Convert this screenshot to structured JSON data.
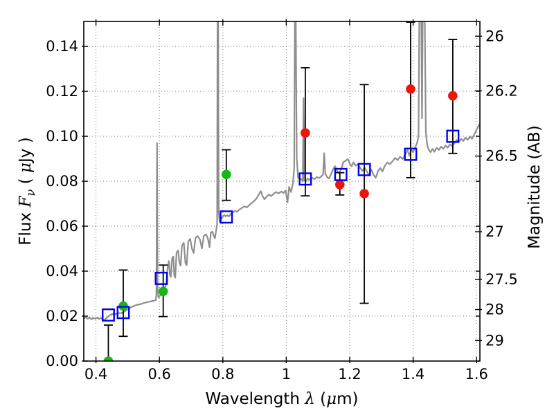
{
  "figure": {
    "background": "#ffffff",
    "frame_color": "#000000"
  },
  "colors": {
    "spectrum": "#8e8e8e",
    "observed_optical": "#17b517",
    "observed_infrared": "#f01408",
    "model_photometry": "#0000ee",
    "error_bars": "#000000",
    "grid": "#777777"
  },
  "labels": {
    "xlabel_text": "Wavelength  λ (μm)",
    "ylabel_left_text": "Flux  Fν  ( μJy )",
    "ylabel_right_text": "Magnitude (AB)",
    "xlabel_parts": [
      {
        "t": "Wavelength  "
      },
      {
        "t": "λ",
        "i": 1,
        "serif": 1
      },
      {
        "t": " ("
      },
      {
        "t": "μ",
        "i": 1,
        "serif": 1
      },
      {
        "t": "m)"
      }
    ],
    "ylabel_left_parts": [
      {
        "t": "Flux  "
      },
      {
        "t": "F",
        "i": 1,
        "serif": 1
      },
      {
        "t": "ν",
        "i": 1,
        "serif": 1,
        "sub": 1
      },
      {
        "t": "  ( "
      },
      {
        "t": "μ",
        "i": 1,
        "serif": 1
      },
      {
        "t": "Jy )"
      }
    ],
    "ylabel_right_parts": [
      {
        "t": "Magnitude (AB)"
      }
    ]
  },
  "chart_data": {
    "type": "line",
    "title": "",
    "xlabel": "Wavelength λ (μm)",
    "ylabel": "Flux Fν ( μJy )",
    "ylabel_right": "Magnitude (AB)",
    "xlim": [
      0.3616,
      1.6105
    ],
    "ylim_flux": [
      0.0,
      0.1511
    ],
    "mag_zeropoint_ab_ujy": 23.9,
    "grid": "dotted major gridlines on wavelength and flux ticks",
    "legend": "none",
    "x_ticks": [
      {
        "v": 0.4,
        "label": "0.4"
      },
      {
        "v": 0.6,
        "label": "0.6"
      },
      {
        "v": 0.8,
        "label": "0.8"
      },
      {
        "v": 1.0,
        "label": "1"
      },
      {
        "v": 1.2,
        "label": "1.2"
      },
      {
        "v": 1.4,
        "label": "1.4"
      },
      {
        "v": 1.6,
        "label": "1.6"
      }
    ],
    "flux_ticks": [
      {
        "v": 0.0,
        "label": "0.00"
      },
      {
        "v": 0.02,
        "label": "0.02"
      },
      {
        "v": 0.04,
        "label": "0.04"
      },
      {
        "v": 0.06,
        "label": "0.06"
      },
      {
        "v": 0.08,
        "label": "0.08"
      },
      {
        "v": 0.1,
        "label": "0.10"
      },
      {
        "v": 0.12,
        "label": "0.12"
      },
      {
        "v": 0.14,
        "label": "0.14"
      }
    ],
    "mag_ticks": [
      {
        "v": 26.0,
        "label": "26"
      },
      {
        "v": 26.2,
        "label": "26.2"
      },
      {
        "v": 26.5,
        "label": "26.5"
      },
      {
        "v": 27.0,
        "label": "27"
      },
      {
        "v": 27.5,
        "label": "27.5"
      },
      {
        "v": 28.0,
        "label": "28"
      },
      {
        "v": 29.0,
        "label": "29"
      }
    ],
    "series": [
      {
        "name": "model-spectrum",
        "type": "line",
        "color": "#8e8e8e",
        "linewidth": 2.2,
        "points": [
          [
            0.362,
            0.019
          ],
          [
            0.368,
            0.0195
          ],
          [
            0.374,
            0.0188
          ],
          [
            0.38,
            0.0194
          ],
          [
            0.386,
            0.0186
          ],
          [
            0.392,
            0.0192
          ],
          [
            0.398,
            0.0188
          ],
          [
            0.404,
            0.0193
          ],
          [
            0.41,
            0.0187
          ],
          [
            0.416,
            0.0192
          ],
          [
            0.421,
            0.0185
          ],
          [
            0.427,
            0.0183
          ],
          [
            0.432,
            0.019
          ],
          [
            0.437,
            0.0196
          ],
          [
            0.442,
            0.0202
          ],
          [
            0.447,
            0.0207
          ],
          [
            0.452,
            0.021
          ],
          [
            0.457,
            0.0204
          ],
          [
            0.462,
            0.0211
          ],
          [
            0.468,
            0.0209
          ],
          [
            0.474,
            0.0214
          ],
          [
            0.48,
            0.0213
          ],
          [
            0.486,
            0.0218
          ],
          [
            0.492,
            0.0222
          ],
          [
            0.498,
            0.0228
          ],
          [
            0.505,
            0.0235
          ],
          [
            0.513,
            0.0241
          ],
          [
            0.521,
            0.0246
          ],
          [
            0.529,
            0.025
          ],
          [
            0.537,
            0.0252
          ],
          [
            0.545,
            0.0255
          ],
          [
            0.553,
            0.0259
          ],
          [
            0.561,
            0.0262
          ],
          [
            0.569,
            0.0264
          ],
          [
            0.577,
            0.0267
          ],
          [
            0.584,
            0.0269
          ],
          [
            0.589,
            0.0272
          ],
          [
            0.5905,
            0.03
          ],
          [
            0.5925,
            0.097
          ],
          [
            0.5945,
            0.031
          ],
          [
            0.597,
            0.0283
          ],
          [
            0.602,
            0.029
          ],
          [
            0.607,
            0.0298
          ],
          [
            0.612,
            0.0306
          ],
          [
            0.617,
            0.0318
          ],
          [
            0.622,
            0.0355
          ],
          [
            0.6265,
            0.042
          ],
          [
            0.63,
            0.0445
          ],
          [
            0.633,
            0.0385
          ],
          [
            0.636,
            0.0374
          ],
          [
            0.64,
            0.0456
          ],
          [
            0.644,
            0.0465
          ],
          [
            0.647,
            0.0379
          ],
          [
            0.65,
            0.0371
          ],
          [
            0.654,
            0.0482
          ],
          [
            0.659,
            0.0492
          ],
          [
            0.663,
            0.044
          ],
          [
            0.667,
            0.0424
          ],
          [
            0.671,
            0.0512
          ],
          [
            0.677,
            0.0526
          ],
          [
            0.682,
            0.0436
          ],
          [
            0.686,
            0.0426
          ],
          [
            0.691,
            0.0532
          ],
          [
            0.697,
            0.0544
          ],
          [
            0.703,
            0.0498
          ],
          [
            0.708,
            0.0481
          ],
          [
            0.714,
            0.0549
          ],
          [
            0.721,
            0.0556
          ],
          [
            0.728,
            0.054
          ],
          [
            0.734,
            0.0501
          ],
          [
            0.74,
            0.0557
          ],
          [
            0.747,
            0.0564
          ],
          [
            0.753,
            0.0544
          ],
          [
            0.758,
            0.0506
          ],
          [
            0.762,
            0.0571
          ],
          [
            0.767,
            0.0576
          ],
          [
            0.771,
            0.0559
          ],
          [
            0.775,
            0.0546
          ],
          [
            0.779,
            0.0582
          ],
          [
            0.782,
            0.061
          ],
          [
            0.7832,
            0.156
          ],
          [
            0.7853,
            0.156
          ],
          [
            0.787,
            0.066
          ],
          [
            0.79,
            0.062
          ],
          [
            0.794,
            0.0631
          ],
          [
            0.799,
            0.0641
          ],
          [
            0.804,
            0.065
          ],
          [
            0.809,
            0.0644
          ],
          [
            0.814,
            0.0649
          ],
          [
            0.819,
            0.0643
          ],
          [
            0.825,
            0.0654
          ],
          [
            0.831,
            0.0661
          ],
          [
            0.838,
            0.0668
          ],
          [
            0.845,
            0.0664
          ],
          [
            0.852,
            0.0674
          ],
          [
            0.86,
            0.0681
          ],
          [
            0.868,
            0.0688
          ],
          [
            0.876,
            0.0684
          ],
          [
            0.884,
            0.0694
          ],
          [
            0.892,
            0.0704
          ],
          [
            0.9,
            0.0714
          ],
          [
            0.908,
            0.0727
          ],
          [
            0.915,
            0.0745
          ],
          [
            0.92,
            0.0756
          ],
          [
            0.925,
            0.0734
          ],
          [
            0.931,
            0.072
          ],
          [
            0.938,
            0.0731
          ],
          [
            0.945,
            0.0741
          ],
          [
            0.952,
            0.0734
          ],
          [
            0.96,
            0.0744
          ],
          [
            0.968,
            0.0752
          ],
          [
            0.976,
            0.0746
          ],
          [
            0.984,
            0.0754
          ],
          [
            0.991,
            0.0748
          ],
          [
            0.998,
            0.0759
          ],
          [
            1.004,
            0.0706
          ],
          [
            1.009,
            0.0775
          ],
          [
            1.015,
            0.0752
          ],
          [
            1.021,
            0.079
          ],
          [
            1.025,
            0.086
          ],
          [
            1.0272,
            0.156
          ],
          [
            1.0298,
            0.156
          ],
          [
            1.033,
            0.0905
          ],
          [
            1.037,
            0.0818
          ],
          [
            1.042,
            0.0806
          ],
          [
            1.047,
            0.0811
          ],
          [
            1.052,
            0.0799
          ],
          [
            1.0545,
            0.117
          ],
          [
            1.057,
            0.0804
          ],
          [
            1.062,
            0.0799
          ],
          [
            1.068,
            0.0812
          ],
          [
            1.075,
            0.0805
          ],
          [
            1.082,
            0.0815
          ],
          [
            1.089,
            0.0809
          ],
          [
            1.096,
            0.0819
          ],
          [
            1.103,
            0.0814
          ],
          [
            1.11,
            0.0821
          ],
          [
            1.116,
            0.0829
          ],
          [
            1.1195,
            0.0925
          ],
          [
            1.123,
            0.0834
          ],
          [
            1.129,
            0.0818
          ],
          [
            1.135,
            0.0812
          ],
          [
            1.141,
            0.0832
          ],
          [
            1.148,
            0.0854
          ],
          [
            1.154,
            0.0867
          ],
          [
            1.159,
            0.0849
          ],
          [
            1.164,
            0.0838
          ],
          [
            1.169,
            0.0843
          ],
          [
            1.174,
            0.0856
          ],
          [
            1.18,
            0.0885
          ],
          [
            1.187,
            0.0891
          ],
          [
            1.194,
            0.0899
          ],
          [
            1.2,
            0.0879
          ],
          [
            1.206,
            0.0867
          ],
          [
            1.212,
            0.0884
          ],
          [
            1.219,
            0.0869
          ],
          [
            1.226,
            0.0876
          ],
          [
            1.233,
            0.0859
          ],
          [
            1.24,
            0.0846
          ],
          [
            1.247,
            0.0861
          ],
          [
            1.254,
            0.0844
          ],
          [
            1.261,
            0.0827
          ],
          [
            1.268,
            0.0852
          ],
          [
            1.275,
            0.0829
          ],
          [
            1.282,
            0.0815
          ],
          [
            1.289,
            0.0844
          ],
          [
            1.296,
            0.0859
          ],
          [
            1.303,
            0.0844
          ],
          [
            1.311,
            0.0869
          ],
          [
            1.319,
            0.0884
          ],
          [
            1.327,
            0.0876
          ],
          [
            1.335,
            0.0889
          ],
          [
            1.343,
            0.0904
          ],
          [
            1.351,
            0.0894
          ],
          [
            1.359,
            0.0909
          ],
          [
            1.367,
            0.0899
          ],
          [
            1.375,
            0.0919
          ],
          [
            1.382,
            0.0939
          ],
          [
            1.388,
            0.0914
          ],
          [
            1.394,
            0.0939
          ],
          [
            1.4,
            0.0929
          ],
          [
            1.406,
            0.0949
          ],
          [
            1.412,
            0.0969
          ],
          [
            1.417,
            0.0999
          ],
          [
            1.4195,
            0.156
          ],
          [
            1.4255,
            0.156
          ],
          [
            1.428,
            0.108
          ],
          [
            1.4305,
            0.156
          ],
          [
            1.4365,
            0.156
          ],
          [
            1.44,
            0.102
          ],
          [
            1.444,
            0.0964
          ],
          [
            1.449,
            0.0941
          ],
          [
            1.455,
            0.0929
          ],
          [
            1.461,
            0.0944
          ],
          [
            1.467,
            0.0931
          ],
          [
            1.474,
            0.0949
          ],
          [
            1.481,
            0.0939
          ],
          [
            1.488,
            0.0954
          ],
          [
            1.495,
            0.0944
          ],
          [
            1.502,
            0.0959
          ],
          [
            1.509,
            0.0949
          ],
          [
            1.516,
            0.0964
          ],
          [
            1.523,
            0.0957
          ],
          [
            1.53,
            0.0969
          ],
          [
            1.537,
            0.0984
          ],
          [
            1.544,
            0.0974
          ],
          [
            1.551,
            0.0989
          ],
          [
            1.558,
            0.0979
          ],
          [
            1.565,
            0.0994
          ],
          [
            1.572,
            0.0984
          ],
          [
            1.579,
            0.0999
          ],
          [
            1.586,
            0.0989
          ],
          [
            1.593,
            0.1009
          ],
          [
            1.6,
            0.1029
          ],
          [
            1.607,
            0.1048
          ],
          [
            1.6105,
            0.1055
          ]
        ]
      },
      {
        "name": "observed-optical",
        "type": "scatter",
        "marker": "filled-circle",
        "color": "#17b517",
        "points": [
          {
            "x": 0.439,
            "y": 0.0,
            "err_lo": 0.0,
            "err_hi": 0.016
          },
          {
            "x": 0.486,
            "y": 0.0245,
            "err_lo": 0.0135,
            "err_hi": 0.016
          },
          {
            "x": 0.612,
            "y": 0.031,
            "err_lo": 0.0112,
            "err_hi": 0.0117
          },
          {
            "x": 0.811,
            "y": 0.083,
            "err_lo": 0.0115,
            "err_hi": 0.011
          }
        ]
      },
      {
        "name": "observed-infrared",
        "type": "scatter",
        "marker": "filled-circle",
        "color": "#f01408",
        "points": [
          {
            "x": 1.06,
            "y": 0.1015,
            "err_lo": 0.028,
            "err_hi": 0.029
          },
          {
            "x": 1.169,
            "y": 0.0785,
            "err_lo": 0.0046,
            "err_hi": 0.0053
          },
          {
            "x": 1.246,
            "y": 0.0745,
            "err_lo": 0.0488,
            "err_hi": 0.0485
          },
          {
            "x": 1.392,
            "y": 0.121,
            "err_lo": 0.0394,
            "err_hi": 0.0298
          },
          {
            "x": 1.525,
            "y": 0.118,
            "err_lo": 0.0256,
            "err_hi": 0.0251
          }
        ]
      },
      {
        "name": "model-photometry",
        "type": "scatter",
        "marker": "open-square",
        "color": "#0000ee",
        "points": [
          {
            "x": 0.439,
            "y": 0.0205
          },
          {
            "x": 0.486,
            "y": 0.0216
          },
          {
            "x": 0.606,
            "y": 0.0368
          },
          {
            "x": 0.811,
            "y": 0.0641
          },
          {
            "x": 1.06,
            "y": 0.081
          },
          {
            "x": 1.172,
            "y": 0.083
          },
          {
            "x": 1.246,
            "y": 0.0852
          },
          {
            "x": 1.392,
            "y": 0.092
          },
          {
            "x": 1.525,
            "y": 0.1
          }
        ]
      }
    ]
  }
}
